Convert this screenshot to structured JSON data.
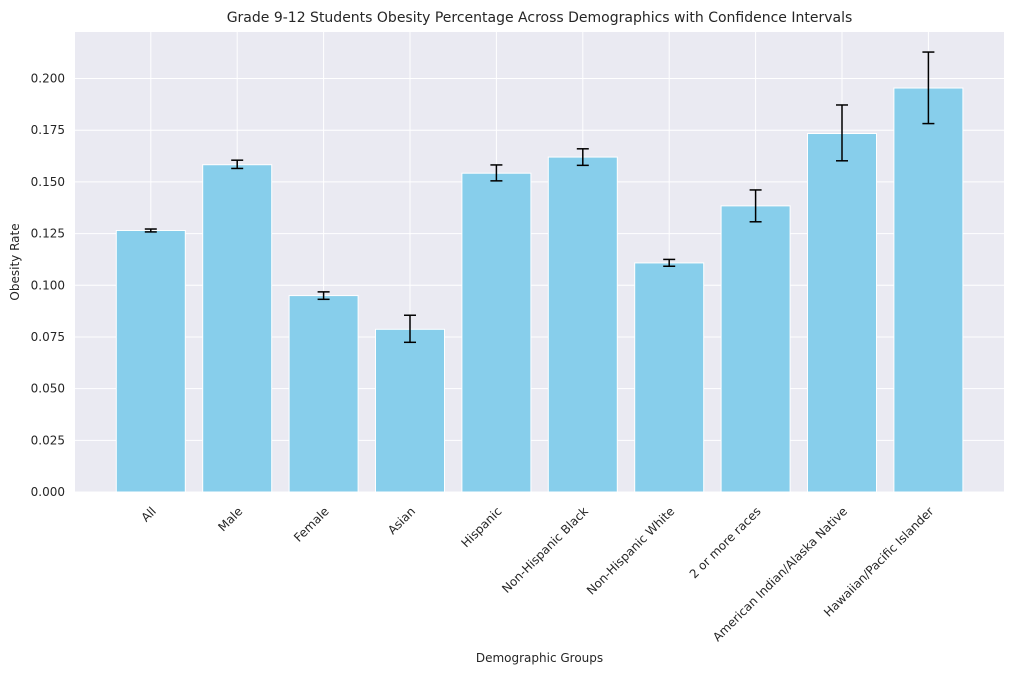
{
  "chart_data": {
    "type": "bar",
    "title": "Grade 9-12 Students Obesity Percentage Across Demographics with Confidence Intervals",
    "xlabel": "Demographic Groups",
    "ylabel": "Obesity Rate",
    "categories": [
      "All",
      "Male",
      "Female",
      "Asian",
      "Hispanic",
      "Non-Hispanic Black",
      "Non-Hispanic White",
      "2 or more races",
      "American Indian/Alaska Native",
      "Hawaiian/Pacific Islander"
    ],
    "values": [
      0.1265,
      0.1583,
      0.095,
      0.0787,
      0.1542,
      0.162,
      0.1108,
      0.1384,
      0.1734,
      0.1954
    ],
    "ci_lower": [
      0.1258,
      0.1565,
      0.0932,
      0.0724,
      0.1505,
      0.158,
      0.1092,
      0.1307,
      0.1602,
      0.1782
    ],
    "ci_upper": [
      0.1272,
      0.1605,
      0.0968,
      0.0855,
      0.1582,
      0.166,
      0.1125,
      0.1461,
      0.1872,
      0.2128
    ],
    "ylim": [
      0,
      0.2225
    ],
    "yticks": [
      "0.000",
      "0.025",
      "0.050",
      "0.075",
      "0.100",
      "0.125",
      "0.150",
      "0.175",
      "0.200"
    ],
    "grid": true,
    "bar_color": "#87CEEB",
    "error_bar_color": "#000000",
    "background_color": "#EAEAF2"
  }
}
